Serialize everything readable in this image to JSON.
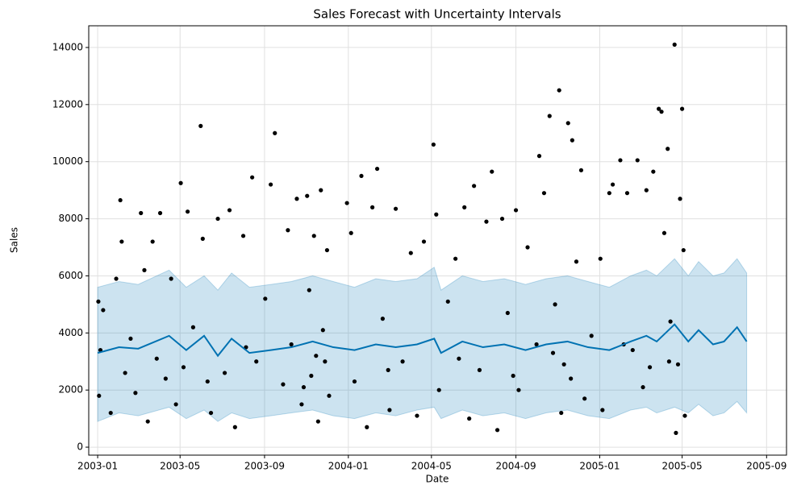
{
  "chart_data": {
    "type": "forecast",
    "title": "Sales Forecast with Uncertainty Intervals",
    "x_label": "Date",
    "y_label": "Sales",
    "xlim": [
      "2002-12-19",
      "2005-09-30"
    ],
    "ylim": [
      -280,
      14760
    ],
    "xticks": [
      {
        "value": "2003-01-01",
        "label": "2003-01"
      },
      {
        "value": "2003-05-01",
        "label": "2003-05"
      },
      {
        "value": "2003-09-01",
        "label": "2003-09"
      },
      {
        "value": "2004-01-01",
        "label": "2004-01"
      },
      {
        "value": "2004-05-01",
        "label": "2004-05"
      },
      {
        "value": "2004-09-01",
        "label": "2004-09"
      },
      {
        "value": "2005-01-01",
        "label": "2005-01"
      },
      {
        "value": "2005-05-01",
        "label": "2005-05"
      },
      {
        "value": "2005-09-01",
        "label": "2005-09"
      }
    ],
    "yticks": [
      0,
      2000,
      4000,
      6000,
      8000,
      10000,
      12000,
      14000
    ],
    "grid": true,
    "line_color": "#0072B2",
    "band_color": "#0072B2",
    "point_color": "#000000",
    "forecast": {
      "x": [
        "2003-01-01",
        "2003-02-01",
        "2003-03-01",
        "2003-04-15",
        "2003-05-10",
        "2003-06-05",
        "2003-06-25",
        "2003-07-15",
        "2003-08-10",
        "2003-09-10",
        "2003-10-10",
        "2003-11-10",
        "2003-12-10",
        "2004-01-10",
        "2004-02-10",
        "2004-03-10",
        "2004-04-10",
        "2004-05-05",
        "2004-05-15",
        "2004-06-15",
        "2004-07-15",
        "2004-08-15",
        "2004-09-15",
        "2004-10-15",
        "2004-11-15",
        "2004-12-15",
        "2005-01-15",
        "2005-02-15",
        "2005-03-10",
        "2005-03-25",
        "2005-04-20",
        "2005-05-10",
        "2005-05-25",
        "2005-06-15",
        "2005-07-01",
        "2005-07-20",
        "2005-08-03"
      ],
      "values": [
        3300,
        3500,
        3450,
        3900,
        3400,
        3900,
        3200,
        3800,
        3300,
        3400,
        3500,
        3700,
        3500,
        3400,
        3600,
        3500,
        3600,
        3800,
        3300,
        3700,
        3500,
        3600,
        3400,
        3600,
        3700,
        3500,
        3400,
        3700,
        3900,
        3700,
        4300,
        3700,
        4100,
        3600,
        3700,
        4200,
        3700
      ],
      "lower": [
        900,
        1200,
        1100,
        1400,
        1000,
        1300,
        900,
        1200,
        1000,
        1100,
        1200,
        1300,
        1100,
        1000,
        1200,
        1100,
        1300,
        1400,
        1000,
        1300,
        1100,
        1200,
        1000,
        1200,
        1300,
        1100,
        1000,
        1300,
        1400,
        1200,
        1400,
        1200,
        1500,
        1100,
        1200,
        1600,
        1200
      ],
      "upper": [
        5600,
        5800,
        5700,
        6200,
        5600,
        6000,
        5500,
        6100,
        5600,
        5700,
        5800,
        6000,
        5800,
        5600,
        5900,
        5800,
        5900,
        6300,
        5500,
        6000,
        5800,
        5900,
        5700,
        5900,
        6000,
        5800,
        5600,
        6000,
        6200,
        6000,
        6600,
        6000,
        6500,
        6000,
        6100,
        6600,
        6100
      ]
    },
    "observed": {
      "x": [
        "2003-01-02",
        "2003-01-03",
        "2003-01-05",
        "2003-01-09",
        "2003-01-20",
        "2003-01-28",
        "2003-02-03",
        "2003-02-05",
        "2003-02-10",
        "2003-02-18",
        "2003-02-25",
        "2003-03-05",
        "2003-03-10",
        "2003-03-15",
        "2003-03-22",
        "2003-03-28",
        "2003-04-02",
        "2003-04-10",
        "2003-04-18",
        "2003-04-25",
        "2003-05-02",
        "2003-05-06",
        "2003-05-12",
        "2003-05-20",
        "2003-05-31",
        "2003-06-03",
        "2003-06-15",
        "2003-06-25",
        "2003-07-05",
        "2003-07-12",
        "2003-07-20",
        "2003-08-01",
        "2003-08-14",
        "2003-08-20",
        "2003-09-02",
        "2003-09-10",
        "2003-09-16",
        "2003-09-28",
        "2003-10-05",
        "2003-10-10",
        "2003-10-18",
        "2003-10-25",
        "2003-11-02",
        "2003-11-05",
        "2003-11-08",
        "2003-11-12",
        "2003-11-18",
        "2003-11-22",
        "2003-11-25",
        "2003-11-28",
        "2003-12-01",
        "2003-12-04",
        "2003-12-30",
        "2004-01-05",
        "2004-01-10",
        "2004-01-20",
        "2004-01-28",
        "2004-02-05",
        "2004-02-12",
        "2004-02-20",
        "2004-03-01",
        "2004-03-10",
        "2004-03-20",
        "2004-04-01",
        "2004-04-10",
        "2004-04-20",
        "2004-05-04",
        "2004-05-08",
        "2004-05-12",
        "2004-05-25",
        "2004-06-05",
        "2004-06-18",
        "2004-06-25",
        "2004-07-02",
        "2004-07-10",
        "2004-07-20",
        "2004-07-28",
        "2004-08-05",
        "2004-08-12",
        "2004-08-20",
        "2004-09-01",
        "2004-09-05",
        "2004-09-18",
        "2004-10-01",
        "2004-10-05",
        "2004-10-12",
        "2004-10-20",
        "2004-10-28",
        "2004-11-03",
        "2004-11-06",
        "2004-11-10",
        "2004-11-16",
        "2004-11-22",
        "2004-11-28",
        "2004-12-05",
        "2004-12-10",
        "2004-12-20",
        "2005-01-02",
        "2005-01-05",
        "2005-01-15",
        "2005-01-20",
        "2005-01-31",
        "2005-02-10",
        "2005-02-18",
        "2005-02-25",
        "2005-03-05",
        "2005-03-10",
        "2005-03-20",
        "2005-03-28",
        "2005-04-01",
        "2005-04-05",
        "2005-04-10",
        "2005-04-14",
        "2005-04-20",
        "2005-04-22",
        "2005-04-25",
        "2005-04-28",
        "2005-05-01",
        "2005-05-03",
        "2005-05-05",
        "2003-06-10",
        "2003-08-05",
        "2003-10-28",
        "2003-11-15",
        "2004-02-28",
        "2004-06-10",
        "2004-08-28",
        "2004-10-25",
        "2004-11-20",
        "2005-02-05",
        "2005-03-15",
        "2005-04-12"
      ],
      "values": [
        5100,
        1800,
        3400,
        4800,
        1200,
        5900,
        8650,
        7200,
        2600,
        3800,
        1900,
        8200,
        6200,
        900,
        7200,
        3100,
        8200,
        2400,
        5900,
        1500,
        9250,
        2800,
        8250,
        4200,
        11250,
        7300,
        1200,
        8000,
        2600,
        8300,
        700,
        7400,
        9450,
        3000,
        5200,
        9200,
        11000,
        2200,
        7600,
        3600,
        8700,
        1500,
        8800,
        5500,
        2500,
        7400,
        900,
        9000,
        4100,
        3000,
        6900,
        1800,
        8550,
        7500,
        2300,
        9500,
        700,
        8400,
        9750,
        4500,
        1300,
        8350,
        3000,
        6800,
        1100,
        7200,
        10600,
        8150,
        2000,
        5100,
        6600,
        8400,
        1000,
        9150,
        2700,
        7900,
        9650,
        600,
        8000,
        4700,
        8300,
        2000,
        7000,
        3600,
        10200,
        8900,
        11600,
        5000,
        12500,
        1200,
        2900,
        11350,
        10750,
        6500,
        9700,
        1700,
        3900,
        6600,
        1300,
        8900,
        9200,
        10050,
        8900,
        3400,
        10050,
        2100,
        9000,
        9650,
        11850,
        11750,
        7500,
        10450,
        4400,
        14100,
        500,
        2900,
        8700,
        11850,
        6900,
        1100,
        2300,
        3500,
        2100,
        3200,
        2700,
        3100,
        2500,
        3300,
        2400,
        3600,
        2800,
        3000
      ]
    }
  }
}
